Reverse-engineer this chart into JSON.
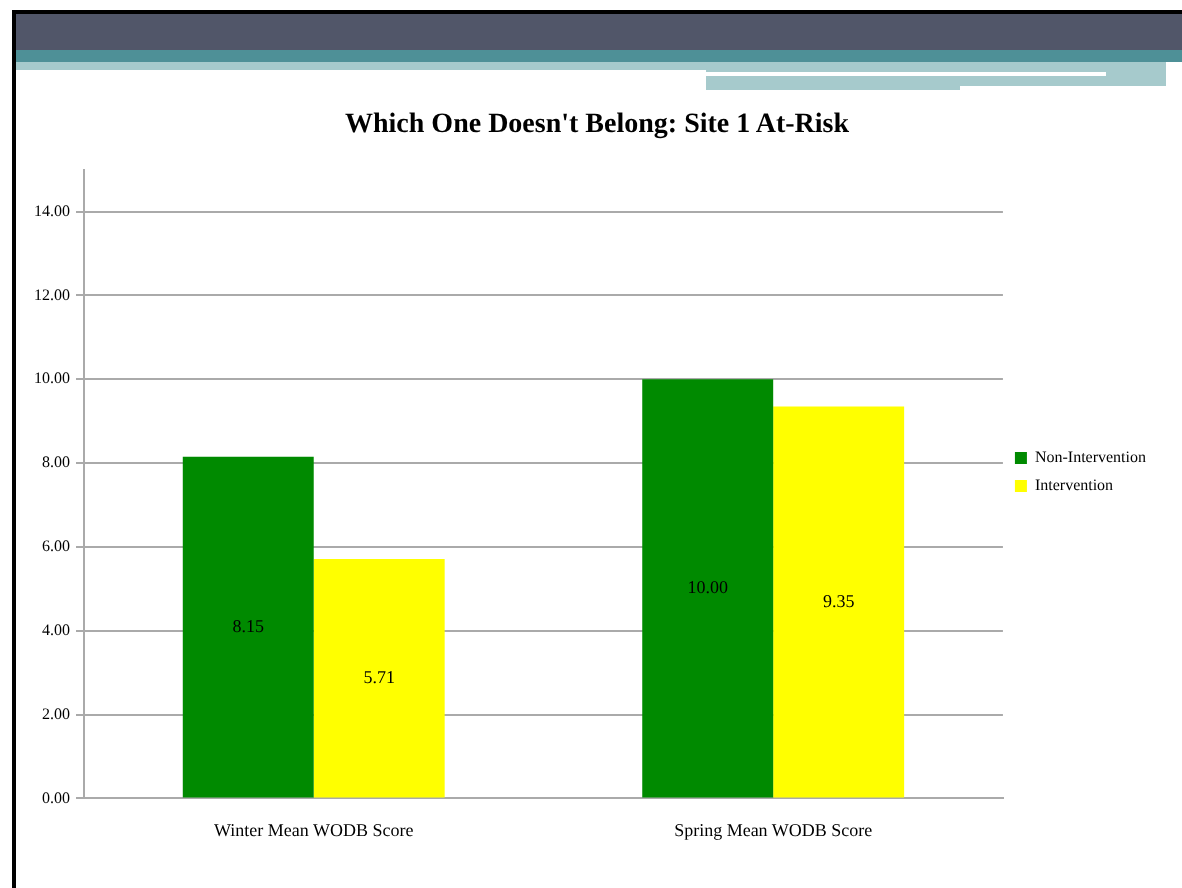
{
  "chart_data": {
    "type": "bar",
    "title": "Which One Doesn't Belong: Site 1 At-Risk",
    "categories": [
      "Winter Mean WODB Score",
      "Spring Mean WODB Score"
    ],
    "series": [
      {
        "name": "Non-Intervention",
        "color": "#008a00",
        "values": [
          8.15,
          10.0
        ],
        "value_labels": [
          "8.15",
          "10.00"
        ]
      },
      {
        "name": "Intervention",
        "color": "#ffff00",
        "values": [
          5.71,
          9.35
        ],
        "value_labels": [
          "5.71",
          "9.35"
        ]
      }
    ],
    "ylim": [
      0,
      15
    ],
    "yticks": [
      {
        "value": 0,
        "label": "0.00"
      },
      {
        "value": 2,
        "label": "2.00"
      },
      {
        "value": 4,
        "label": "4.00"
      },
      {
        "value": 6,
        "label": "6.00"
      },
      {
        "value": 8,
        "label": "8.00"
      },
      {
        "value": 10,
        "label": "10.00"
      },
      {
        "value": 12,
        "label": "12.00"
      },
      {
        "value": 14,
        "label": "14.00"
      }
    ],
    "grid": "y",
    "legend": "right"
  }
}
